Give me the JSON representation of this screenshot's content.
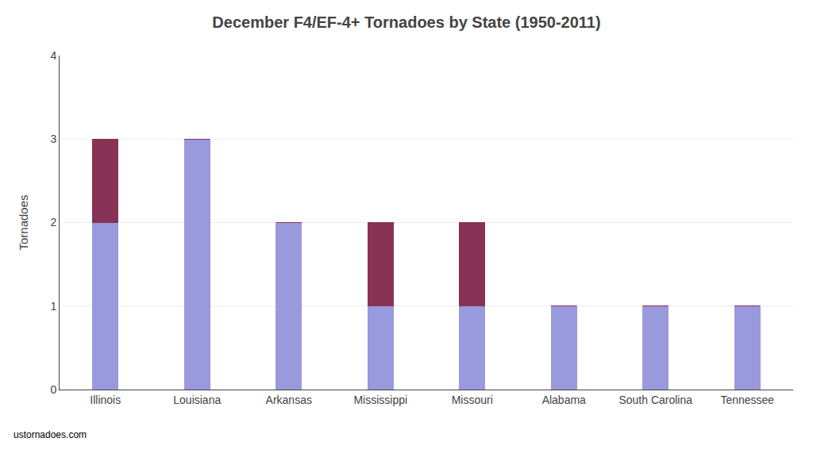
{
  "chart_data": {
    "type": "bar",
    "stacked": true,
    "title": "December F4/EF-4+ Tornadoes by State (1950-2011)",
    "ylabel": "Tornadoes",
    "annotations": [
      "ustornadoes.com"
    ],
    "categories": [
      "Illinois",
      "Louisiana",
      "Arkansas",
      "Mississippi",
      "Missouri",
      "Alabama",
      "South Carolina",
      "Tennessee"
    ],
    "series": [
      {
        "color": "#9999DD",
        "values": [
          2,
          3,
          2,
          1,
          1,
          1,
          1,
          1
        ]
      },
      {
        "color": "#883355",
        "values": [
          1,
          0,
          0,
          1,
          1,
          0,
          0,
          0
        ]
      }
    ],
    "ylim": [
      0,
      4
    ],
    "yticks": [
      0,
      1,
      2,
      3,
      4
    ],
    "grid": true
  }
}
